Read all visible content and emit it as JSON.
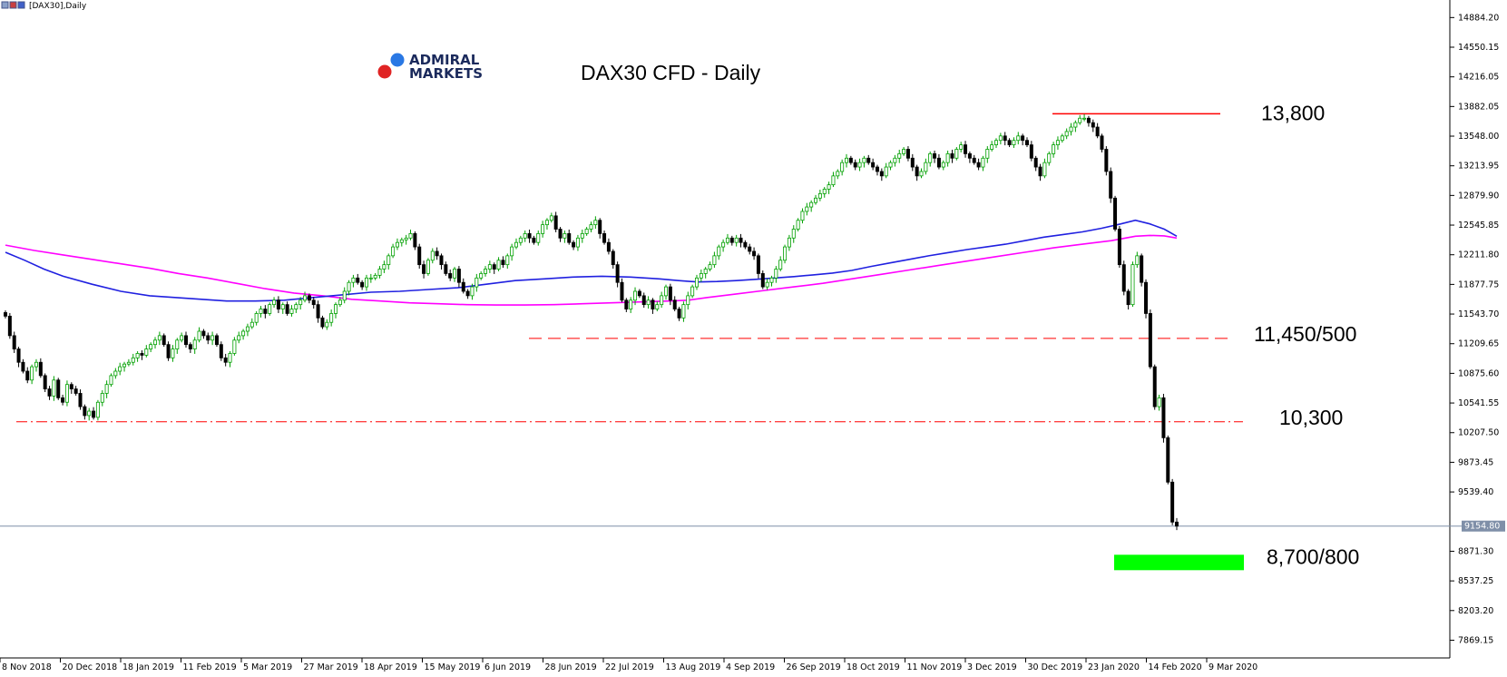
{
  "window": {
    "symbol_label": "[DAX30],Daily"
  },
  "brand": {
    "line1": "ADMIRAL",
    "line2": "MARKETS"
  },
  "chart_data": {
    "type": "candlestick",
    "title": "DAX30 CFD - Daily",
    "current_price": "9154.80",
    "colors": {
      "bull": "#00a000",
      "bear": "#000000",
      "ma_fast": "#2020e0",
      "ma_slow": "#ff00ff",
      "resistance": "#ff0000",
      "support_zone": "#00ff00",
      "price_line": "#7f8fa8"
    },
    "ylim": [
      7700,
      15000
    ],
    "y_ticks": [
      "14884.20",
      "14550.15",
      "14216.05",
      "13882.05",
      "13548.00",
      "13213.95",
      "12879.90",
      "12545.85",
      "12211.80",
      "11877.75",
      "11543.70",
      "11209.65",
      "10875.60",
      "10541.55",
      "10207.50",
      "9873.45",
      "9539.40",
      "8871.30",
      "8537.25",
      "8203.20",
      "7869.15"
    ],
    "x_ticks": [
      "8 Nov 2018",
      "20 Dec 2018",
      "18 Jan 2019",
      "11 Feb 2019",
      "5 Mar 2019",
      "27 Mar 2019",
      "18 Apr 2019",
      "15 May 2019",
      "6 Jun 2019",
      "28 Jun 2019",
      "22 Jul 2019",
      "13 Aug 2019",
      "4 Sep 2019",
      "26 Sep 2019",
      "18 Oct 2019",
      "11 Nov 2019",
      "3 Dec 2019",
      "30 Dec 2019",
      "23 Jan 2020",
      "14 Feb 2020",
      "9 Mar 2020"
    ],
    "levels": [
      {
        "label": "13,800",
        "value": 13800
      },
      {
        "label": "11,450/500",
        "value": 11270
      },
      {
        "label": "10,300",
        "value": 10330
      },
      {
        "label": "8,700/800",
        "value": 8750
      }
    ],
    "series": [
      {
        "name": "",
        "type": "candles",
        "close": [
          11520,
          11300,
          11150,
          11000,
          10900,
          10800,
          10950,
          11000,
          10850,
          10700,
          10620,
          10800,
          10600,
          10550,
          10750,
          10700,
          10650,
          10500,
          10400,
          10450,
          10380,
          10550,
          10650,
          10750,
          10850,
          10900,
          10950,
          10980,
          11000,
          11050,
          11100,
          11080,
          11150,
          11200,
          11250,
          11300,
          11200,
          11050,
          11150,
          11250,
          11300,
          11200,
          11150,
          11250,
          11350,
          11300,
          11250,
          11300,
          11200,
          11050,
          11000,
          11100,
          11250,
          11300,
          11350,
          11400,
          11450,
          11550,
          11600,
          11550,
          11650,
          11700,
          11600,
          11650,
          11550,
          11600,
          11650,
          11700,
          11750,
          11700,
          11650,
          11500,
          11400,
          11450,
          11550,
          11650,
          11700,
          11800,
          11900,
          11950,
          11900,
          11850,
          11950,
          11950,
          11980,
          12050,
          12100,
          12200,
          12300,
          12350,
          12380,
          12400,
          12450,
          12300,
          12100,
          12000,
          12150,
          12250,
          12200,
          12100,
          12000,
          11950,
          12050,
          11900,
          11800,
          11750,
          11850,
          11950,
          12000,
          12050,
          12100,
          12050,
          12150,
          12100,
          12200,
          12300,
          12350,
          12400,
          12450,
          12400,
          12350,
          12450,
          12550,
          12600,
          12650,
          12500,
          12400,
          12450,
          12350,
          12300,
          12400,
          12450,
          12500,
          12550,
          12600,
          12450,
          12350,
          12250,
          12100,
          11900,
          11700,
          11600,
          11700,
          11800,
          11750,
          11650,
          11700,
          11600,
          11650,
          11750,
          11850,
          11700,
          11600,
          11500,
          11650,
          11750,
          11850,
          11950,
          12000,
          12050,
          12100,
          12200,
          12300,
          12350,
          12400,
          12350,
          12400,
          12350,
          12300,
          12250,
          12200,
          12000,
          11850,
          11900,
          11950,
          12050,
          12150,
          12300,
          12400,
          12500,
          12600,
          12700,
          12750,
          12800,
          12850,
          12900,
          12950,
          13000,
          13100,
          13150,
          13250,
          13300,
          13250,
          13200,
          13250,
          13300,
          13250,
          13200,
          13150,
          13100,
          13200,
          13250,
          13300,
          13350,
          13400,
          13300,
          13200,
          13100,
          13150,
          13250,
          13350,
          13300,
          13200,
          13250,
          13350,
          13300,
          13400,
          13450,
          13350,
          13300,
          13250,
          13200,
          13300,
          13400,
          13450,
          13500,
          13550,
          13500,
          13450,
          13500,
          13550,
          13500,
          13450,
          13300,
          13200,
          13100,
          13250,
          13350,
          13450,
          13500,
          13550,
          13600,
          13650,
          13700,
          13750,
          13750,
          13700,
          13650,
          13550,
          13400,
          13150,
          12850,
          12500,
          12100,
          11800,
          11650,
          12100,
          12200,
          11900,
          11550,
          10950,
          10500,
          10600,
          10150,
          9650,
          9200,
          9154.8
        ]
      },
      {
        "name": "",
        "type": "line",
        "points": [
          [
            0,
            12240
          ],
          [
            20,
            12150
          ],
          [
            40,
            12050
          ],
          [
            60,
            11970
          ],
          [
            90,
            11880
          ],
          [
            120,
            11800
          ],
          [
            150,
            11750
          ],
          [
            190,
            11720
          ],
          [
            230,
            11690
          ],
          [
            260,
            11690
          ],
          [
            290,
            11700
          ],
          [
            320,
            11730
          ],
          [
            350,
            11760
          ],
          [
            380,
            11790
          ],
          [
            410,
            11800
          ],
          [
            440,
            11820
          ],
          [
            470,
            11840
          ],
          [
            500,
            11880
          ],
          [
            530,
            11920
          ],
          [
            560,
            11940
          ],
          [
            590,
            11960
          ],
          [
            620,
            11970
          ],
          [
            650,
            11960
          ],
          [
            680,
            11940
          ],
          [
            700,
            11920
          ],
          [
            720,
            11905
          ],
          [
            740,
            11910
          ],
          [
            760,
            11920
          ],
          [
            780,
            11935
          ],
          [
            800,
            11950
          ],
          [
            820,
            11965
          ],
          [
            840,
            11985
          ],
          [
            860,
            12005
          ],
          [
            880,
            12035
          ],
          [
            900,
            12080
          ],
          [
            920,
            12120
          ],
          [
            940,
            12160
          ],
          [
            960,
            12200
          ],
          [
            980,
            12235
          ],
          [
            1000,
            12270
          ],
          [
            1020,
            12300
          ],
          [
            1040,
            12330
          ],
          [
            1060,
            12370
          ],
          [
            1080,
            12410
          ],
          [
            1100,
            12440
          ],
          [
            1120,
            12470
          ],
          [
            1140,
            12510
          ],
          [
            1160,
            12560
          ],
          [
            1175,
            12600
          ],
          [
            1190,
            12560
          ],
          [
            1205,
            12500
          ],
          [
            1218,
            12420
          ]
        ]
      },
      {
        "name": "",
        "type": "line",
        "points": [
          [
            0,
            12320
          ],
          [
            30,
            12260
          ],
          [
            60,
            12210
          ],
          [
            90,
            12160
          ],
          [
            120,
            12110
          ],
          [
            150,
            12060
          ],
          [
            180,
            12000
          ],
          [
            210,
            11950
          ],
          [
            240,
            11890
          ],
          [
            270,
            11830
          ],
          [
            300,
            11780
          ],
          [
            330,
            11750
          ],
          [
            360,
            11710
          ],
          [
            390,
            11690
          ],
          [
            420,
            11670
          ],
          [
            450,
            11660
          ],
          [
            480,
            11650
          ],
          [
            510,
            11645
          ],
          [
            540,
            11645
          ],
          [
            570,
            11650
          ],
          [
            600,
            11660
          ],
          [
            630,
            11670
          ],
          [
            660,
            11680
          ],
          [
            690,
            11690
          ],
          [
            710,
            11700
          ],
          [
            730,
            11730
          ],
          [
            760,
            11770
          ],
          [
            790,
            11810
          ],
          [
            820,
            11850
          ],
          [
            850,
            11890
          ],
          [
            880,
            11940
          ],
          [
            910,
            11990
          ],
          [
            940,
            12040
          ],
          [
            970,
            12090
          ],
          [
            1000,
            12140
          ],
          [
            1030,
            12190
          ],
          [
            1060,
            12240
          ],
          [
            1090,
            12290
          ],
          [
            1120,
            12330
          ],
          [
            1150,
            12370
          ],
          [
            1175,
            12420
          ],
          [
            1190,
            12430
          ],
          [
            1205,
            12425
          ],
          [
            1218,
            12400
          ]
        ]
      }
    ]
  }
}
